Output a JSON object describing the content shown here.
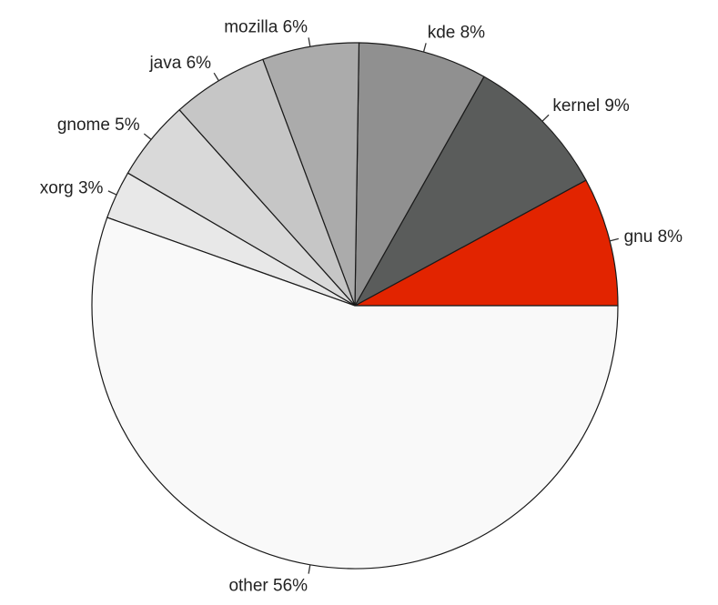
{
  "chart_data": {
    "type": "pie",
    "start_angle_deg": 0,
    "direction": "counterclockwise",
    "slices": [
      {
        "name": "gnu",
        "value": 8,
        "label": "gnu 8%",
        "color": "#e22400"
      },
      {
        "name": "kernel",
        "value": 9,
        "label": "kernel 9%",
        "color": "#5a5c5b"
      },
      {
        "name": "kde",
        "value": 8,
        "label": "kde 8%",
        "color": "#909090"
      },
      {
        "name": "mozilla",
        "value": 6,
        "label": "mozilla 6%",
        "color": "#ababab"
      },
      {
        "name": "java",
        "value": 6,
        "label": "java 6%",
        "color": "#c6c6c6"
      },
      {
        "name": "gnome",
        "value": 5,
        "label": "gnome 5%",
        "color": "#d9d9d9"
      },
      {
        "name": "xorg",
        "value": 3,
        "label": "xorg 3%",
        "color": "#e8e8e8"
      },
      {
        "name": "other",
        "value": 56,
        "label": "other 56%",
        "color": "#f9f9f9"
      }
    ]
  }
}
